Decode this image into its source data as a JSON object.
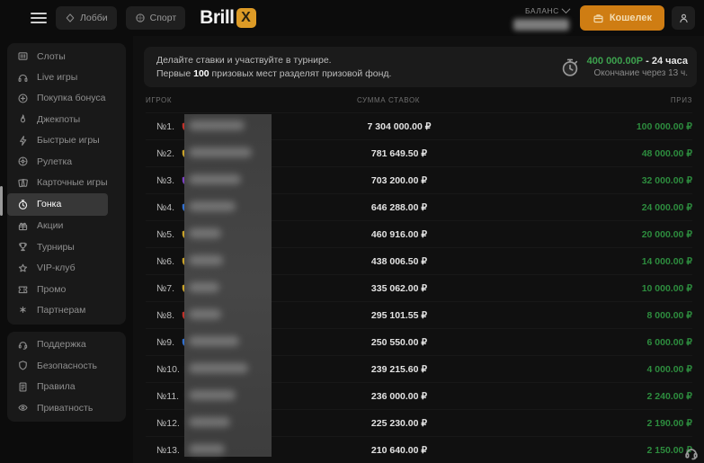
{
  "header": {
    "lobby_label": "Лобби",
    "sport_label": "Спорт",
    "logo_text": "Brill",
    "logo_x": "X",
    "balance_label": "БАЛАНС",
    "wallet_label": "Кошелек"
  },
  "sidebar": {
    "main_items": [
      {
        "label": "Слоты",
        "icon": "slots",
        "selected": false
      },
      {
        "label": "Live игры",
        "icon": "live",
        "selected": false
      },
      {
        "label": "Покупка бонуса",
        "icon": "bonus",
        "selected": false
      },
      {
        "label": "Джекпоты",
        "icon": "jackpot",
        "selected": false
      },
      {
        "label": "Быстрые игры",
        "icon": "fast",
        "selected": false
      },
      {
        "label": "Рулетка",
        "icon": "roulette",
        "selected": false
      },
      {
        "label": "Карточные игры",
        "icon": "cards",
        "selected": false
      },
      {
        "label": "Гонка",
        "icon": "race",
        "selected": true
      },
      {
        "label": "Акции",
        "icon": "gift",
        "selected": false
      },
      {
        "label": "Турниры",
        "icon": "trophy",
        "selected": false
      },
      {
        "label": "VIP-клуб",
        "icon": "star",
        "selected": false
      },
      {
        "label": "Промо",
        "icon": "ticket",
        "selected": false
      },
      {
        "label": "Партнерам",
        "icon": "partners",
        "selected": false
      }
    ],
    "footer_items": [
      {
        "label": "Поддержка",
        "icon": "support"
      },
      {
        "label": "Безопасность",
        "icon": "shield"
      },
      {
        "label": "Правила",
        "icon": "rules"
      },
      {
        "label": "Приватность",
        "icon": "eye"
      }
    ]
  },
  "banner": {
    "line1": "Делайте ставки и участвуйте в турнире.",
    "line2_prefix": "Первые ",
    "line2_bold": "100",
    "line2_suffix": " призовых мест разделят призовой фонд.",
    "prize_amount": "400 000.00Р",
    "duration_suffix": " - 24 часа",
    "ending_text": "Окончание через 13 ч."
  },
  "table": {
    "headers": {
      "player": "ИГРОК",
      "bets": "СУММА СТАВОК",
      "prize": "ПРИЗ"
    },
    "rows": [
      {
        "rank": "№1.",
        "avatar_color": "#c03028",
        "bets": "7 304 000.00 ₽",
        "prize": "100 000.00 ₽"
      },
      {
        "rank": "№2.",
        "avatar_color": "#c9a227",
        "bets": "781 649.50 ₽",
        "prize": "48 000.00 ₽"
      },
      {
        "rank": "№3.",
        "avatar_color": "#7b3fc4",
        "bets": "703 200.00 ₽",
        "prize": "32 000.00 ₽"
      },
      {
        "rank": "№4.",
        "avatar_color": "#2f6fd0",
        "bets": "646 288.00 ₽",
        "prize": "24 000.00 ₽"
      },
      {
        "rank": "№5.",
        "avatar_color": "#c9a227",
        "bets": "460 916.00 ₽",
        "prize": "20 000.00 ₽"
      },
      {
        "rank": "№6.",
        "avatar_color": "#c9a227",
        "bets": "438 006.50 ₽",
        "prize": "14 000.00 ₽"
      },
      {
        "rank": "№7.",
        "avatar_color": "#c9a227",
        "bets": "335 062.00 ₽",
        "prize": "10 000.00 ₽"
      },
      {
        "rank": "№8.",
        "avatar_color": "#c03028",
        "bets": "295 101.55 ₽",
        "prize": "8 000.00 ₽"
      },
      {
        "rank": "№9.",
        "avatar_color": "#2f6fd0",
        "bets": "250 550.00 ₽",
        "prize": "6 000.00 ₽"
      },
      {
        "rank": "№10.",
        "avatar_color": "#3d8fd6",
        "bets": "239 215.60 ₽",
        "prize": "4 000.00 ₽"
      },
      {
        "rank": "№11.",
        "avatar_color": "#c03028",
        "bets": "236 000.00 ₽",
        "prize": "2 240.00 ₽"
      },
      {
        "rank": "№12.",
        "avatar_color": "#d77a1e",
        "bets": "225 230.00 ₽",
        "prize": "2 190.00 ₽"
      },
      {
        "rank": "№13.",
        "avatar_color": "#7b3fc4",
        "bets": "210 640.00 ₽",
        "prize": "2 150.00 ₽"
      }
    ]
  },
  "colors": {
    "accent_orange": "#cf7d13",
    "logo_amber": "#dd9b26",
    "prize_green": "#2d8c3e",
    "banner_green": "#3da24e"
  }
}
